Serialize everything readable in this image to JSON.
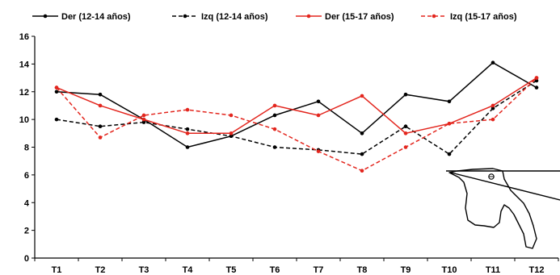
{
  "chart_data": {
    "type": "line",
    "categories": [
      "T1",
      "T2",
      "T3",
      "T4",
      "T5",
      "T6",
      "T7",
      "T8",
      "T9",
      "T10",
      "T11",
      "T12"
    ],
    "ylim": [
      0,
      16
    ],
    "yticks": [
      "0",
      "2",
      "4",
      "6",
      "8",
      "10",
      "12",
      "14",
      "16"
    ],
    "grid": false,
    "legend_position": "top",
    "series": [
      {
        "name": "Der (12-14 años)",
        "color": "#000000",
        "dash": "solid",
        "values": [
          12.0,
          11.8,
          10.0,
          8.0,
          8.8,
          10.3,
          11.3,
          9.0,
          11.8,
          11.3,
          14.1,
          12.3
        ]
      },
      {
        "name": "Izq (12-14 años)",
        "color": "#000000",
        "dash": "dashed",
        "values": [
          10.0,
          9.5,
          9.8,
          9.3,
          8.8,
          8.0,
          7.8,
          7.5,
          9.5,
          7.5,
          10.8,
          12.8
        ]
      },
      {
        "name": "Der (15-17 años)",
        "color": "#e3261e",
        "dash": "solid",
        "values": [
          12.3,
          11.0,
          10.0,
          9.0,
          9.0,
          11.0,
          10.3,
          11.7,
          9.0,
          9.7,
          11.0,
          13.0
        ]
      },
      {
        "name": "Izq (15-17 años)",
        "color": "#e3261e",
        "dash": "dashed",
        "values": [
          12.3,
          8.7,
          10.3,
          10.7,
          10.3,
          9.3,
          7.7,
          6.3,
          8.0,
          9.7,
          10.0,
          13.0
        ]
      }
    ]
  },
  "illustration": {
    "name": "hand-outline-diagram"
  }
}
